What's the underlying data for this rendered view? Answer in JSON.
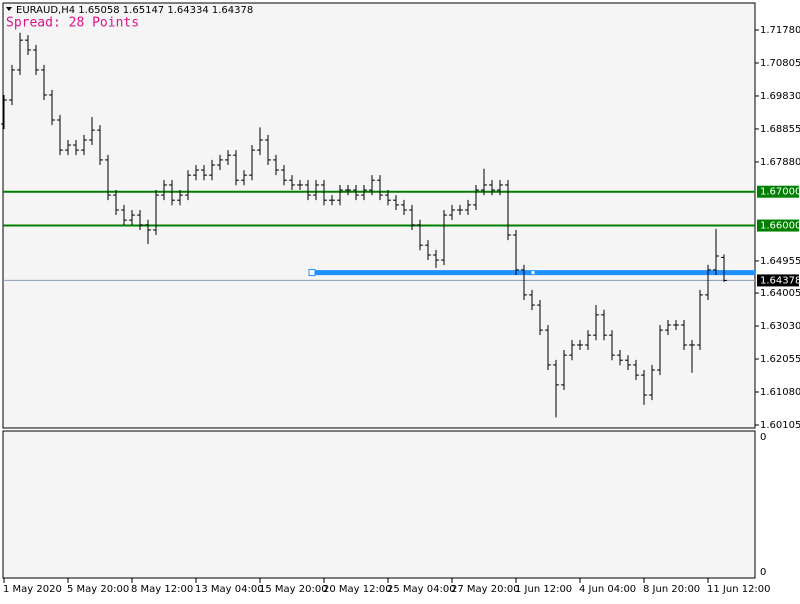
{
  "chart_data": {
    "type": "ohlc",
    "symbol_info": "EURAUD,H4 1.65058 1.65147 1.64334 1.64378",
    "spread_label": "Spread: 28 Points",
    "categories": [
      "1 May 2020",
      null,
      null,
      null,
      null,
      null,
      null,
      null,
      "5 May 20:00",
      null,
      null,
      null,
      null,
      null,
      null,
      null,
      "8 May 12:00",
      null,
      null,
      null,
      null,
      null,
      null,
      null,
      "13 May 04:00",
      null,
      null,
      null,
      null,
      null,
      null,
      null,
      "15 May 20:00",
      null,
      null,
      null,
      null,
      null,
      null,
      null,
      "20 May 12:00",
      null,
      null,
      null,
      null,
      null,
      null,
      null,
      "25 May 04:00",
      null,
      null,
      null,
      null,
      null,
      null,
      null,
      "27 May 20:00",
      null,
      null,
      null,
      null,
      null,
      null,
      null,
      "1 Jun 12:00",
      null,
      null,
      null,
      null,
      null,
      null,
      null,
      "4 Jun 04:00",
      null,
      null,
      null,
      null,
      null,
      null,
      null,
      "8 Jun 20:00",
      null,
      null,
      null,
      null,
      null,
      null,
      null,
      "11 Jun 12:00",
      null,
      null
    ],
    "open": [
      1.69,
      1.6971,
      1.706,
      1.7148,
      1.7119,
      1.706,
      1.6986,
      1.6912,
      1.6823,
      1.6838,
      1.6823,
      1.6853,
      1.6882,
      1.6794,
      1.669,
      1.6646,
      1.6616,
      1.6631,
      1.6602,
      1.6587,
      1.669,
      1.672,
      1.6675,
      1.669,
      1.6749,
      1.6764,
      1.6749,
      1.6779,
      1.6794,
      1.6808,
      1.6734,
      1.6749,
      1.6823,
      1.6853,
      1.6794,
      1.6764,
      1.6734,
      1.672,
      1.672,
      1.669,
      1.672,
      1.6675,
      1.6675,
      1.6705,
      1.6705,
      1.669,
      1.6705,
      1.6734,
      1.669,
      1.6675,
      1.6661,
      1.6646,
      1.6602,
      1.6542,
      1.6513,
      1.6498,
      1.6631,
      1.6646,
      1.6646,
      1.6661,
      1.6705,
      1.672,
      1.6705,
      1.672,
      1.6572,
      1.6469,
      1.6395,
      1.6365,
      1.6291,
      1.6188,
      1.6129,
      1.6217,
      1.6247,
      1.6247,
      1.6276,
      1.6336,
      1.6276,
      1.6217,
      1.6202,
      1.6188,
      1.6158,
      1.6099,
      1.6173,
      1.6291,
      1.6306,
      1.6306,
      1.6247,
      1.6247,
      1.6395,
      1.6469,
      1.65058
    ],
    "high": [
      1.6986,
      1.7075,
      1.717,
      1.7163,
      1.7134,
      1.7075,
      1.7001,
      1.6927,
      1.6853,
      1.6853,
      1.6868,
      1.6921,
      1.6897,
      1.6809,
      1.6705,
      1.6661,
      1.6646,
      1.6646,
      1.6617,
      1.6705,
      1.6735,
      1.6735,
      1.6705,
      1.6764,
      1.6779,
      1.6779,
      1.6794,
      1.6809,
      1.6823,
      1.6823,
      1.6764,
      1.6838,
      1.689,
      1.6868,
      1.6809,
      1.6779,
      1.6749,
      1.6735,
      1.6735,
      1.6735,
      1.6735,
      1.669,
      1.672,
      1.672,
      1.672,
      1.672,
      1.6749,
      1.6749,
      1.6705,
      1.669,
      1.6676,
      1.6661,
      1.6617,
      1.6557,
      1.6528,
      1.6646,
      1.6661,
      1.6661,
      1.6676,
      1.672,
      1.6768,
      1.6735,
      1.6735,
      1.6735,
      1.6587,
      1.6484,
      1.641,
      1.638,
      1.6306,
      1.6203,
      1.6232,
      1.6262,
      1.6262,
      1.6291,
      1.6365,
      1.6351,
      1.6291,
      1.6232,
      1.6217,
      1.6203,
      1.6173,
      1.6188,
      1.6306,
      1.6321,
      1.6321,
      1.6321,
      1.6262,
      1.641,
      1.6484,
      1.659,
      1.65147
    ],
    "low": [
      1.6885,
      1.6956,
      1.7045,
      1.7104,
      1.7045,
      1.6971,
      1.6897,
      1.6808,
      1.6808,
      1.6808,
      1.6808,
      1.6838,
      1.6779,
      1.6675,
      1.6631,
      1.6601,
      1.6601,
      1.6587,
      1.6545,
      1.6572,
      1.6675,
      1.666,
      1.666,
      1.6675,
      1.6734,
      1.6734,
      1.6734,
      1.6764,
      1.6779,
      1.6719,
      1.6719,
      1.6734,
      1.6808,
      1.6779,
      1.6749,
      1.6719,
      1.6705,
      1.6705,
      1.6675,
      1.6675,
      1.666,
      1.666,
      1.666,
      1.669,
      1.6675,
      1.6675,
      1.669,
      1.6675,
      1.666,
      1.6646,
      1.6631,
      1.6587,
      1.6527,
      1.6498,
      1.6475,
      1.6483,
      1.6616,
      1.6631,
      1.6631,
      1.6646,
      1.669,
      1.669,
      1.669,
      1.6557,
      1.6454,
      1.638,
      1.635,
      1.6276,
      1.6173,
      1.6033,
      1.6114,
      1.6202,
      1.6232,
      1.6232,
      1.6261,
      1.6261,
      1.6202,
      1.6187,
      1.6173,
      1.6143,
      1.607,
      1.6084,
      1.6158,
      1.6276,
      1.6291,
      1.6232,
      1.6165,
      1.6232,
      1.638,
      1.6454,
      1.64334
    ],
    "close": [
      1.6971,
      1.706,
      1.7148,
      1.7119,
      1.706,
      1.6986,
      1.6912,
      1.6823,
      1.6838,
      1.6823,
      1.6853,
      1.6882,
      1.6794,
      1.669,
      1.6646,
      1.6616,
      1.6631,
      1.6602,
      1.6587,
      1.669,
      1.672,
      1.6675,
      1.669,
      1.6749,
      1.6764,
      1.6749,
      1.6779,
      1.6794,
      1.6808,
      1.6734,
      1.6749,
      1.6823,
      1.6853,
      1.6794,
      1.6764,
      1.6734,
      1.672,
      1.672,
      1.669,
      1.672,
      1.6675,
      1.6675,
      1.6705,
      1.6705,
      1.669,
      1.6705,
      1.6734,
      1.669,
      1.6675,
      1.6661,
      1.6646,
      1.6602,
      1.6542,
      1.6513,
      1.6498,
      1.6631,
      1.6646,
      1.6646,
      1.6661,
      1.6705,
      1.672,
      1.6705,
      1.672,
      1.6572,
      1.6469,
      1.6395,
      1.6365,
      1.6291,
      1.6188,
      1.6129,
      1.6217,
      1.6247,
      1.6247,
      1.6276,
      1.6336,
      1.6276,
      1.6217,
      1.6202,
      1.6188,
      1.6158,
      1.6099,
      1.6173,
      1.6291,
      1.6306,
      1.6306,
      1.6247,
      1.6247,
      1.6395,
      1.6469,
      1.651,
      1.64378
    ],
    "color": "#000000",
    "ylim": [
      1.60016,
      1.72578
    ],
    "yticks": [
      {
        "value": 1.7178,
        "label": "1.71780"
      },
      {
        "value": 1.70805,
        "label": "1.70805"
      },
      {
        "value": 1.6983,
        "label": "1.69830"
      },
      {
        "value": 1.68855,
        "label": "1.68855"
      },
      {
        "value": 1.6788,
        "label": "1.67880"
      },
      {
        "value": 1.64955,
        "label": "1.64955"
      },
      {
        "value": 1.64005,
        "label": "1.64005"
      },
      {
        "value": 1.6303,
        "label": "1.63030"
      },
      {
        "value": 1.62055,
        "label": "1.62055"
      },
      {
        "value": 1.6108,
        "label": "1.61080"
      },
      {
        "value": 1.60105,
        "label": "1.60105"
      }
    ],
    "hlines": [
      {
        "value": 1.67,
        "label": "1.67000",
        "color": "#008000"
      },
      {
        "value": 1.66,
        "label": "1.66000",
        "color": "#008000"
      },
      {
        "value": 1.64378,
        "label": "1.64378",
        "color": "#000000"
      }
    ],
    "trendline": {
      "value": 1.6461,
      "x_start": 38.5,
      "color": "#1e90ff"
    },
    "indicator_yticks": [
      0,
      0
    ]
  }
}
